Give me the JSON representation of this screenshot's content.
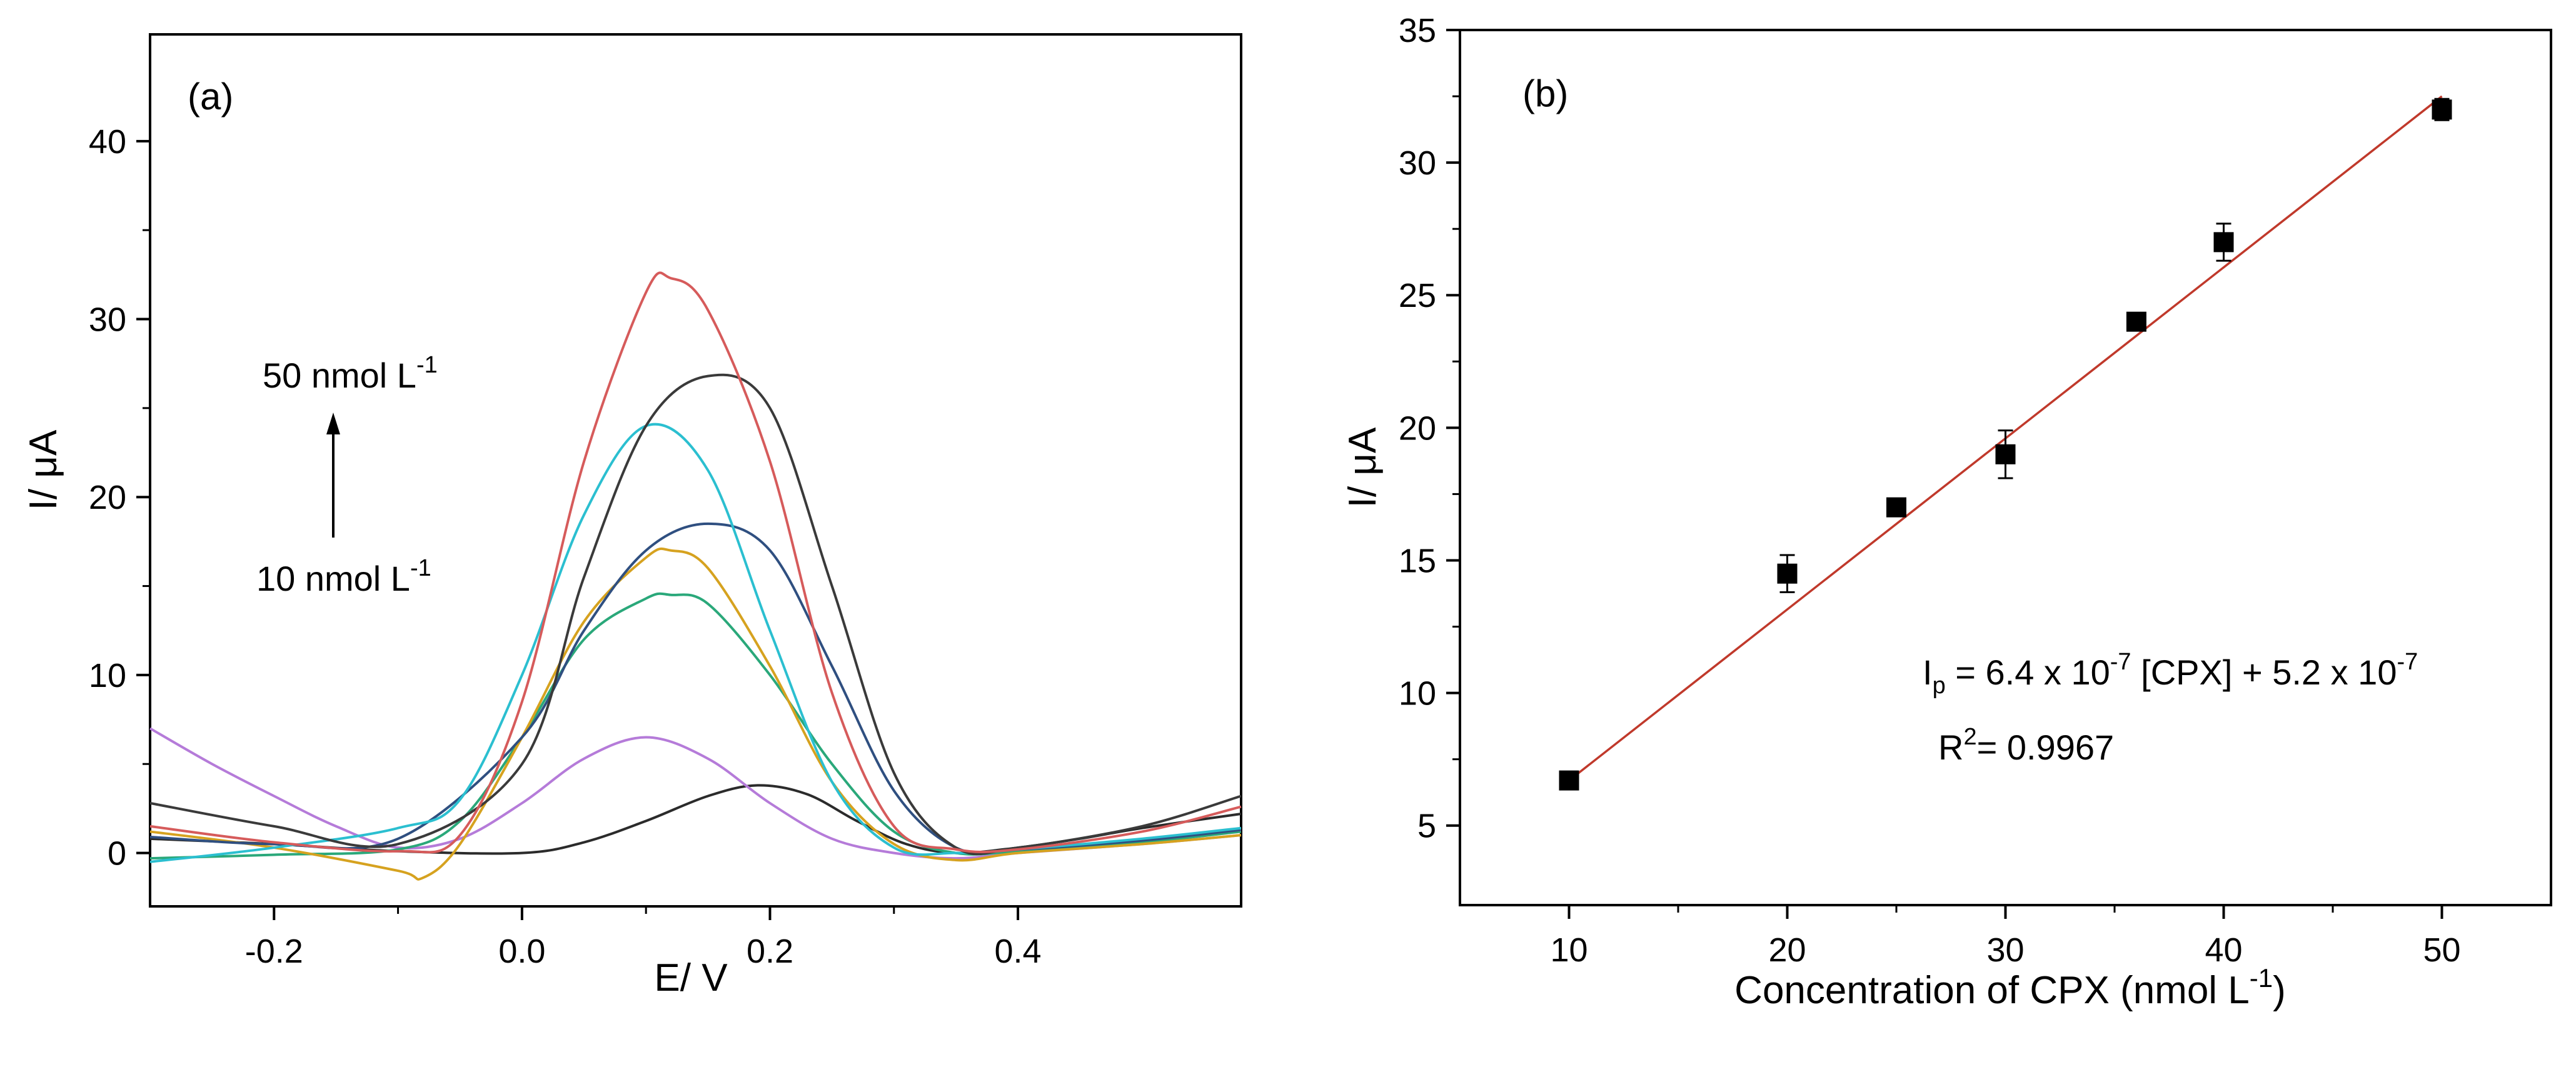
{
  "chart_data": [
    {
      "panel": "(a)",
      "type": "line",
      "xlabel": "E/ V",
      "ylabel": "I/ μA",
      "xlim": [
        -0.3,
        0.58
      ],
      "ylim": [
        -3,
        46
      ],
      "xticks": [
        -0.2,
        0.0,
        0.2,
        0.4
      ],
      "xtick_labels": [
        "-0.2",
        "0.0",
        "0.2",
        "0.4"
      ],
      "yticks": [
        0,
        10,
        20,
        30,
        40
      ],
      "ytick_labels": [
        "0",
        "10",
        "20",
        "30",
        "40"
      ],
      "annotations": {
        "top_text": "50 nmol L",
        "top_sup": "-1",
        "bottom_text": "10 nmol L",
        "bottom_sup": "-1"
      },
      "series": [
        {
          "name": "curve-black-low",
          "color": "#2b2b2b",
          "x": [
            -0.3,
            -0.2,
            -0.1,
            0.0,
            0.05,
            0.1,
            0.15,
            0.19,
            0.23,
            0.27,
            0.31,
            0.35,
            0.4,
            0.45,
            0.5,
            0.58
          ],
          "y": [
            0.8,
            0.5,
            0.1,
            0.0,
            0.6,
            1.8,
            3.2,
            3.8,
            3.3,
            1.8,
            0.5,
            0.0,
            0.3,
            0.8,
            1.4,
            2.2
          ]
        },
        {
          "name": "curve-violet",
          "color": "#b57bd9",
          "x": [
            -0.3,
            -0.25,
            -0.2,
            -0.15,
            -0.1,
            -0.05,
            0.0,
            0.05,
            0.1,
            0.15,
            0.2,
            0.25,
            0.3,
            0.35,
            0.4,
            0.5,
            0.58
          ],
          "y": [
            7.0,
            5.0,
            3.2,
            1.5,
            0.3,
            0.8,
            2.8,
            5.3,
            6.5,
            5.3,
            2.8,
            0.8,
            0.0,
            -0.3,
            0.0,
            0.5,
            1.0
          ]
        },
        {
          "name": "curve-green",
          "color": "#2aa87a",
          "x": [
            -0.3,
            -0.2,
            -0.1,
            -0.05,
            0.0,
            0.05,
            0.1,
            0.12,
            0.15,
            0.2,
            0.25,
            0.3,
            0.35,
            0.4,
            0.5,
            0.58
          ],
          "y": [
            -0.3,
            -0.1,
            0.2,
            1.8,
            6.5,
            12.0,
            14.3,
            14.5,
            14.0,
            10.0,
            5.0,
            1.2,
            0.0,
            0.1,
            0.6,
            1.2
          ]
        },
        {
          "name": "curve-orange",
          "color": "#d6a21f",
          "x": [
            -0.3,
            -0.2,
            -0.1,
            -0.08,
            -0.05,
            0.0,
            0.05,
            0.1,
            0.12,
            0.15,
            0.2,
            0.25,
            0.3,
            0.35,
            0.4,
            0.5,
            0.58
          ],
          "y": [
            1.2,
            0.3,
            -1.0,
            -1.4,
            0.5,
            6.5,
            13.0,
            16.6,
            17.0,
            16.0,
            10.5,
            4.0,
            0.5,
            -0.4,
            0.0,
            0.5,
            1.0
          ]
        },
        {
          "name": "curve-navy",
          "color": "#2f4f80",
          "x": [
            -0.3,
            -0.2,
            -0.1,
            0.0,
            0.05,
            0.1,
            0.15,
            0.2,
            0.25,
            0.3,
            0.35,
            0.4,
            0.5,
            0.58
          ],
          "y": [
            0.9,
            0.5,
            0.8,
            6.5,
            12.5,
            17.0,
            18.5,
            17.0,
            10.5,
            3.5,
            0.3,
            0.2,
            0.7,
            1.3
          ]
        },
        {
          "name": "curve-cyan",
          "color": "#2bbfd0",
          "x": [
            -0.3,
            -0.2,
            -0.1,
            -0.05,
            0.0,
            0.05,
            0.1,
            0.15,
            0.2,
            0.25,
            0.3,
            0.35,
            0.4,
            0.5,
            0.58
          ],
          "y": [
            -0.5,
            0.3,
            1.4,
            3.0,
            10.0,
            19.0,
            24.0,
            21.5,
            12.5,
            4.0,
            0.3,
            0.0,
            0.2,
            0.8,
            1.4
          ]
        },
        {
          "name": "curve-dark",
          "color": "#3a3a3a",
          "x": [
            -0.3,
            -0.2,
            -0.1,
            0.0,
            0.05,
            0.1,
            0.15,
            0.2,
            0.25,
            0.3,
            0.35,
            0.4,
            0.5,
            0.58
          ],
          "y": [
            2.8,
            1.5,
            0.5,
            5.0,
            15.5,
            24.0,
            26.8,
            25.0,
            15.0,
            4.5,
            0.3,
            0.3,
            1.5,
            3.2
          ]
        },
        {
          "name": "curve-red",
          "color": "#d65b5b",
          "x": [
            -0.3,
            -0.2,
            -0.1,
            -0.05,
            0.0,
            0.05,
            0.1,
            0.12,
            0.15,
            0.2,
            0.25,
            0.3,
            0.35,
            0.4,
            0.5,
            0.58
          ],
          "y": [
            1.5,
            0.6,
            0.1,
            1.0,
            8.5,
            22.0,
            31.5,
            32.3,
            30.5,
            22.0,
            9.0,
            1.5,
            0.2,
            0.2,
            1.2,
            2.6
          ]
        }
      ]
    },
    {
      "panel": "(b)",
      "type": "scatter",
      "xlabel": "Concentration of CPX (nmol L",
      "xlabel_sup": "-1",
      "xlabel_close": ")",
      "ylabel": "I/ μA",
      "xlim": [
        5,
        55
      ],
      "ylim": [
        2,
        35
      ],
      "xticks": [
        10,
        20,
        30,
        40,
        50
      ],
      "xtick_labels": [
        "10",
        "20",
        "30",
        "40",
        "50"
      ],
      "yticks": [
        5,
        10,
        15,
        20,
        25,
        30,
        35
      ],
      "ytick_labels": [
        "5",
        "10",
        "15",
        "20",
        "25",
        "30",
        "35"
      ],
      "points": [
        {
          "x": 10,
          "y": 6.7,
          "err": 0.2
        },
        {
          "x": 20,
          "y": 14.5,
          "err": 0.7
        },
        {
          "x": 25,
          "y": 17.0,
          "err": 0.3
        },
        {
          "x": 30,
          "y": 19.0,
          "err": 0.9
        },
        {
          "x": 36,
          "y": 24.0,
          "err": 0.2
        },
        {
          "x": 40,
          "y": 27.0,
          "err": 0.7
        },
        {
          "x": 50,
          "y": 32.0,
          "err": 0.4
        }
      ],
      "fit_line": {
        "x": [
          10,
          50
        ],
        "y": [
          6.7,
          32.5
        ],
        "color": "#c0392b"
      },
      "equation": {
        "i": "I",
        "sub": "p",
        "part1": " = 6.4 x 10",
        "sup1": "-7",
        "part2": " [CPX] + 5.2 x 10",
        "sup2": "-7"
      },
      "r2": {
        "r": "R",
        "sup": "2",
        "rest": "= 0.9967"
      }
    }
  ]
}
